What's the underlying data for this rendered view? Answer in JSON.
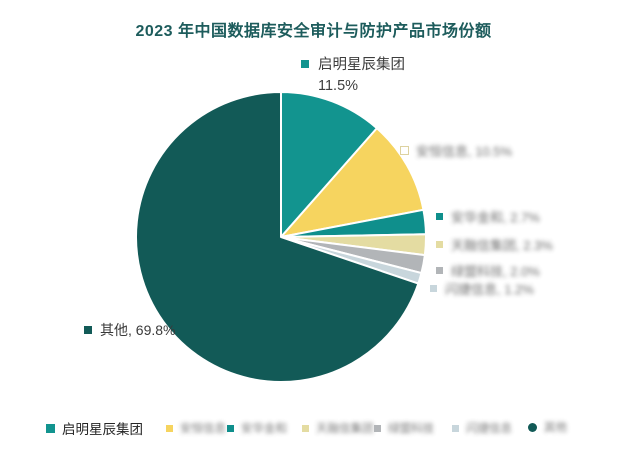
{
  "title": "2023 年中国数据库安全审计与防护产品市场份额",
  "chart_data": {
    "type": "pie",
    "title": "2023 年中国数据库安全审计与防护产品市场份额",
    "start_angle_deg": -90,
    "direction": "clockwise",
    "unit": "%",
    "slices": [
      {
        "label": "启明星辰集团",
        "value": 11.5,
        "color": "#12948f"
      },
      {
        "label": "安恒信息",
        "value": 10.5,
        "color": "#f6d45f"
      },
      {
        "label": "安华金和",
        "value": 2.7,
        "color": "#0f8f8c"
      },
      {
        "label": "天融信集团",
        "value": 2.3,
        "color": "#e4dca2"
      },
      {
        "label": "绿盟科技",
        "value": 2.0,
        "color": "#b2b5b8"
      },
      {
        "label": "闪捷信息",
        "value": 1.2,
        "color": "#c8d6dc"
      },
      {
        "label": "其他",
        "value": 69.8,
        "color": "#125a57"
      }
    ],
    "legend_position": "bottom"
  },
  "callouts": {
    "qimingxingchen": {
      "line1": "启明星辰集团",
      "line2": "11.5%"
    },
    "anheng": "安恒信息, 10.5%",
    "anhua": "安华金和, 2.7%",
    "tianrongxin": "天融信集团, 2.3%",
    "lvmeng": "绿盟科技, 2.0%",
    "shanjie": "闪捷信息, 1.2%",
    "qita": "其他, 69.8%"
  },
  "legend": {
    "marker_shapes": [
      "square",
      "square",
      "square",
      "square",
      "square",
      "square",
      "circle"
    ]
  }
}
